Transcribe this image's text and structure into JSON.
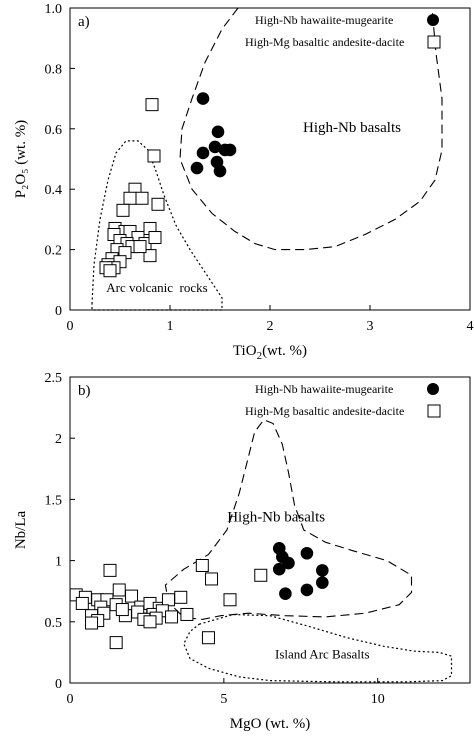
{
  "chart_data": [
    {
      "type": "scatter",
      "panel_label": "a)",
      "xlabel_main": "TiO",
      "xlabel_sub": "2",
      "xlabel_rest": "(wt. %)",
      "ylabel": "P₂O₅ (wt. %)",
      "xlim": [
        0,
        4
      ],
      "ylim": [
        0,
        1.0
      ],
      "x_ticks": [
        "0",
        "1",
        "2",
        "3",
        "4"
      ],
      "y_ticks": [
        "0",
        "0.2",
        "0.4",
        "0.6",
        "0.8",
        "1.0"
      ],
      "legend_position": "top-right",
      "series": [
        {
          "name": "High-Nb hawaiite-mugearite",
          "marker": "filled-circle",
          "points": [
            [
              1.33,
              0.7
            ],
            [
              1.48,
              0.59
            ],
            [
              1.33,
              0.52
            ],
            [
              1.45,
              0.54
            ],
            [
              1.55,
              0.53
            ],
            [
              1.6,
              0.53
            ],
            [
              1.47,
              0.49
            ],
            [
              1.27,
              0.47
            ],
            [
              1.5,
              0.46
            ]
          ]
        },
        {
          "name": "High-Mg basaltic andesite-dacite",
          "marker": "open-square",
          "points": [
            [
              0.82,
              0.68
            ],
            [
              0.84,
              0.51
            ],
            [
              0.65,
              0.4
            ],
            [
              0.72,
              0.37
            ],
            [
              0.6,
              0.37
            ],
            [
              0.88,
              0.35
            ],
            [
              0.53,
              0.33
            ],
            [
              0.45,
              0.27
            ],
            [
              0.55,
              0.26
            ],
            [
              0.8,
              0.27
            ],
            [
              0.44,
              0.25
            ],
            [
              0.6,
              0.26
            ],
            [
              0.68,
              0.24
            ],
            [
              0.75,
              0.22
            ],
            [
              0.85,
              0.24
            ],
            [
              0.5,
              0.23
            ],
            [
              0.57,
              0.22
            ],
            [
              0.62,
              0.21
            ],
            [
              0.47,
              0.2
            ],
            [
              0.55,
              0.19
            ],
            [
              0.8,
              0.18
            ],
            [
              0.42,
              0.17
            ],
            [
              0.5,
              0.16
            ],
            [
              0.38,
              0.15
            ],
            [
              0.44,
              0.14
            ],
            [
              0.36,
              0.14
            ],
            [
              0.4,
              0.13
            ],
            [
              0.7,
              0.21
            ]
          ]
        }
      ],
      "annotations": [
        "High-Nb basalts",
        "Arc volcanic  rocks"
      ],
      "fields": [
        {
          "label": "High-Nb basalts",
          "style": "dashed",
          "polygon": [
            [
              1.68,
              1.0
            ],
            [
              1.52,
              0.93
            ],
            [
              1.35,
              0.82
            ],
            [
              1.22,
              0.7
            ],
            [
              1.12,
              0.6
            ],
            [
              1.1,
              0.5
            ],
            [
              1.22,
              0.4
            ],
            [
              1.42,
              0.32
            ],
            [
              1.65,
              0.26
            ],
            [
              1.85,
              0.22
            ],
            [
              2.05,
              0.2
            ],
            [
              2.35,
              0.2
            ],
            [
              2.65,
              0.21
            ],
            [
              2.95,
              0.25
            ],
            [
              3.25,
              0.3
            ],
            [
              3.5,
              0.36
            ],
            [
              3.65,
              0.43
            ],
            [
              3.72,
              0.53
            ],
            [
              3.72,
              0.7
            ],
            [
              3.66,
              0.85
            ],
            [
              3.62,
              1.0
            ]
          ]
        },
        {
          "label": "Arc volcanic  rocks",
          "style": "dotted",
          "polygon": [
            [
              0.22,
              0.02
            ],
            [
              0.24,
              0.15
            ],
            [
              0.3,
              0.3
            ],
            [
              0.38,
              0.43
            ],
            [
              0.46,
              0.52
            ],
            [
              0.56,
              0.56
            ],
            [
              0.68,
              0.56
            ],
            [
              0.78,
              0.53
            ],
            [
              0.86,
              0.46
            ],
            [
              0.94,
              0.38
            ],
            [
              1.06,
              0.28
            ],
            [
              1.2,
              0.2
            ],
            [
              1.4,
              0.1
            ],
            [
              1.52,
              0.04
            ],
            [
              1.52,
              0.0
            ],
            [
              1.1,
              0.0
            ],
            [
              0.6,
              0.0
            ],
            [
              0.22,
              0.0
            ]
          ]
        }
      ]
    },
    {
      "type": "scatter",
      "panel_label": "b)",
      "xlabel": "MgO (wt. %)",
      "ylabel": "Nb/La",
      "xlim": [
        0,
        13
      ],
      "ylim": [
        0,
        2.5
      ],
      "x_ticks": [
        "0",
        "5",
        "10"
      ],
      "x_tick_values": [
        0,
        5,
        10
      ],
      "y_ticks": [
        "0",
        "0.5",
        "1",
        "1.5",
        "2",
        "2.5"
      ],
      "legend_position": "top-right",
      "series": [
        {
          "name": "High-Nb hawaiite-mugearite",
          "marker": "filled-circle",
          "points": [
            [
              6.8,
              1.1
            ],
            [
              7.7,
              1.06
            ],
            [
              6.9,
              1.03
            ],
            [
              7.1,
              0.98
            ],
            [
              8.2,
              0.92
            ],
            [
              6.8,
              0.93
            ],
            [
              8.2,
              0.82
            ],
            [
              7.7,
              0.76
            ],
            [
              7.0,
              0.73
            ]
          ]
        },
        {
          "name": "High-Mg basaltic andesite-dacite",
          "marker": "open-square",
          "points": [
            [
              4.3,
              0.96
            ],
            [
              4.6,
              0.85
            ],
            [
              6.2,
              0.88
            ],
            [
              1.3,
              0.92
            ],
            [
              5.2,
              0.68
            ],
            [
              0.2,
              0.72
            ],
            [
              0.5,
              0.7
            ],
            [
              0.9,
              0.68
            ],
            [
              1.2,
              0.68
            ],
            [
              1.6,
              0.76
            ],
            [
              0.4,
              0.65
            ],
            [
              1.0,
              0.62
            ],
            [
              1.5,
              0.64
            ],
            [
              2.0,
              0.71
            ],
            [
              2.3,
              0.62
            ],
            [
              2.6,
              0.65
            ],
            [
              2.9,
              0.61
            ],
            [
              3.2,
              0.68
            ],
            [
              3.6,
              0.7
            ],
            [
              2.2,
              0.58
            ],
            [
              2.7,
              0.56
            ],
            [
              3.0,
              0.59
            ],
            [
              0.7,
              0.55
            ],
            [
              1.1,
              0.57
            ],
            [
              1.8,
              0.55
            ],
            [
              2.4,
              0.52
            ],
            [
              2.8,
              0.53
            ],
            [
              3.3,
              0.54
            ],
            [
              0.9,
              0.51
            ],
            [
              0.7,
              0.49
            ],
            [
              2.6,
              0.5
            ],
            [
              3.8,
              0.56
            ],
            [
              4.5,
              0.37
            ],
            [
              1.5,
              0.33
            ],
            [
              1.7,
              0.6
            ]
          ]
        }
      ],
      "annotations": [
        "High-Nb basalts",
        "Island Arc Basalts"
      ],
      "fields": [
        {
          "label": "High-Nb basalts",
          "style": "dashed",
          "polygon": [
            [
              3.6,
              0.56
            ],
            [
              3.2,
              0.66
            ],
            [
              3.1,
              0.8
            ],
            [
              3.7,
              0.93
            ],
            [
              4.5,
              1.05
            ],
            [
              5.1,
              1.25
            ],
            [
              5.5,
              1.55
            ],
            [
              5.8,
              1.85
            ],
            [
              6.0,
              2.05
            ],
            [
              6.3,
              2.15
            ],
            [
              6.6,
              2.12
            ],
            [
              6.9,
              1.95
            ],
            [
              7.1,
              1.72
            ],
            [
              7.3,
              1.45
            ],
            [
              7.6,
              1.25
            ],
            [
              8.3,
              1.15
            ],
            [
              9.2,
              1.08
            ],
            [
              10.3,
              1.0
            ],
            [
              11.1,
              0.88
            ],
            [
              11.1,
              0.74
            ],
            [
              10.7,
              0.64
            ],
            [
              9.6,
              0.57
            ],
            [
              8.3,
              0.54
            ],
            [
              7.0,
              0.55
            ],
            [
              5.8,
              0.57
            ],
            [
              4.9,
              0.55
            ],
            [
              4.3,
              0.52
            ],
            [
              3.9,
              0.53
            ]
          ]
        },
        {
          "label": "Island Arc Basalts",
          "style": "dotted",
          "polygon": [
            [
              4.2,
              0.48
            ],
            [
              5.3,
              0.56
            ],
            [
              6.5,
              0.55
            ],
            [
              7.8,
              0.46
            ],
            [
              9.0,
              0.37
            ],
            [
              10.2,
              0.3
            ],
            [
              11.2,
              0.26
            ],
            [
              12.0,
              0.25
            ],
            [
              12.4,
              0.22
            ],
            [
              12.4,
              0.06
            ],
            [
              12.1,
              0.02
            ],
            [
              11.0,
              0.01
            ],
            [
              8.5,
              0.01
            ],
            [
              6.5,
              0.02
            ],
            [
              5.5,
              0.05
            ],
            [
              4.5,
              0.12
            ],
            [
              3.9,
              0.2
            ],
            [
              3.7,
              0.32
            ],
            [
              3.9,
              0.42
            ]
          ]
        }
      ]
    }
  ]
}
